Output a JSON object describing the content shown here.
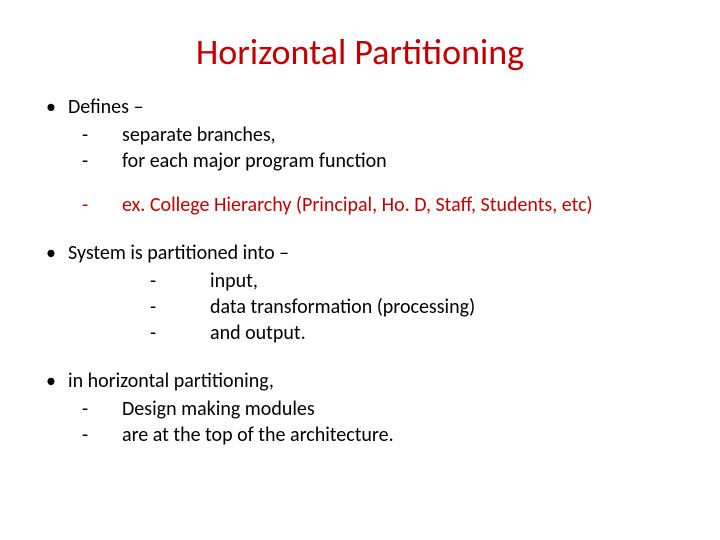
{
  "colors": {
    "title": "#c00000",
    "body": "#000000",
    "highlight": "#c00000",
    "background": "#ffffff"
  },
  "typography": {
    "title_fontsize": 36,
    "body_fontsize": 20,
    "font_family": "Calibri"
  },
  "title": "Horizontal Partitioning",
  "bullets": [
    {
      "text": "Defines –",
      "subs": [
        {
          "marker": "-",
          "text": "separate branches,"
        },
        {
          "marker": "-",
          "text": "for each major program function"
        }
      ],
      "highlight_subs": [
        {
          "marker": "-",
          "text": "ex. College Hierarchy (Principal, Ho. D, Staff, Students, etc)"
        }
      ]
    },
    {
      "text": "System is partitioned into –",
      "deep_subs": [
        {
          "marker": "-",
          "text": "input,"
        },
        {
          "marker": "-",
          "text": "data transformation (processing)"
        },
        {
          "marker": "-",
          "text": "and output."
        }
      ]
    },
    {
      "text": "in horizontal partitioning,",
      "subs": [
        {
          "marker": "-",
          "text": "Design making modules"
        },
        {
          "marker": "-",
          "text": "are at the top of the architecture."
        }
      ]
    }
  ]
}
